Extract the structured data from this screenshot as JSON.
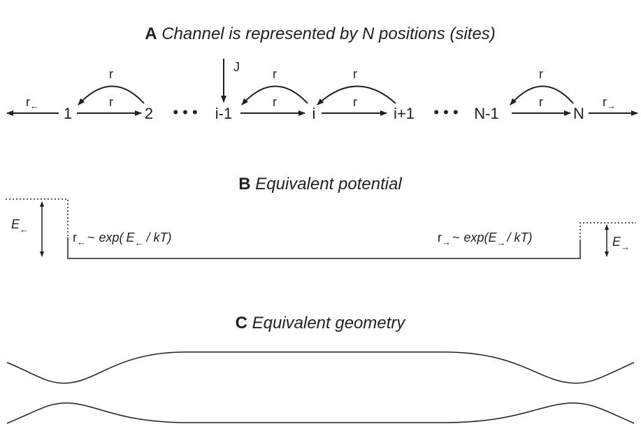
{
  "panels": [
    {
      "letter": "A",
      "title": "Channel is represented by N positions (sites)"
    },
    {
      "letter": "B",
      "title": "Equivalent potential"
    },
    {
      "letter": "C",
      "title": "Equivalent geometry"
    }
  ],
  "sites": [
    "1",
    "2",
    "i-1",
    "i",
    "i+1",
    "N-1",
    "N"
  ],
  "rate": "r",
  "flux": "J",
  "ellipsis": "• • •",
  "left_arrow": "←",
  "right_arrow": "→",
  "energy": "E",
  "formula": {
    "approx": "~",
    "open": "exp(",
    "close": "/ kT)"
  }
}
